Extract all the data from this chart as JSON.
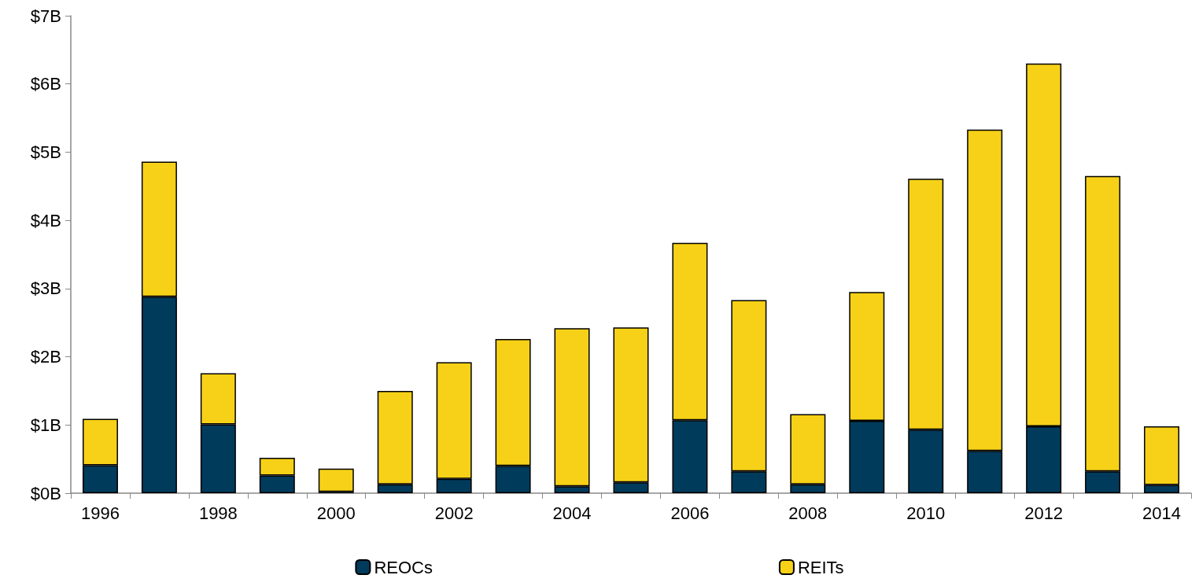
{
  "chart_data": {
    "type": "bar",
    "stacked": true,
    "categories": [
      "1996",
      null,
      "1998",
      null,
      "2000",
      null,
      "2002",
      null,
      "2004",
      null,
      "2006",
      null,
      "2008",
      null,
      "2010",
      null,
      "2012",
      null,
      "2014"
    ],
    "series": [
      {
        "name": "REOCs",
        "color": "#003b5c",
        "values": [
          0.41,
          2.88,
          1.01,
          0.26,
          0.02,
          0.13,
          0.21,
          0.4,
          0.1,
          0.16,
          1.07,
          0.32,
          0.13,
          1.06,
          0.93,
          0.62,
          0.98,
          0.32,
          0.12
        ]
      },
      {
        "name": "REITs",
        "color": "#f7d117",
        "values": [
          0.68,
          1.98,
          0.75,
          0.26,
          0.34,
          1.37,
          1.71,
          1.86,
          2.32,
          2.27,
          2.6,
          2.51,
          1.03,
          1.89,
          3.68,
          4.71,
          5.32,
          4.33,
          0.86
        ]
      }
    ],
    "ylim": [
      0,
      7
    ],
    "yticks": [
      {
        "value": 0,
        "label": "$0B"
      },
      {
        "value": 1,
        "label": "$1B"
      },
      {
        "value": 2,
        "label": "$2B"
      },
      {
        "value": 3,
        "label": "$3B"
      },
      {
        "value": 4,
        "label": "$4B"
      },
      {
        "value": 5,
        "label": "$5B"
      },
      {
        "value": 6,
        "label": "$6B"
      },
      {
        "value": 7,
        "label": "$7B"
      }
    ],
    "grid": false,
    "legend": "bottom"
  }
}
